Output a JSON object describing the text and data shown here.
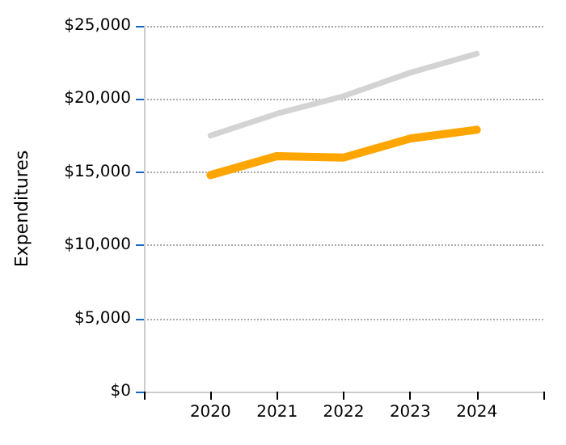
{
  "chart_data": {
    "type": "line",
    "ylabel": "Expenditures",
    "x": [
      2020,
      2021,
      2022,
      2023,
      2024
    ],
    "series": [
      {
        "color": "#d3d3d3",
        "values": [
          17500,
          19000,
          20200,
          21800,
          23100
        ]
      },
      {
        "color": "#ffa500",
        "values": [
          14800,
          16100,
          16000,
          17300,
          17900
        ]
      }
    ],
    "xlim": [
      2019,
      2025
    ],
    "xticks": [
      {
        "value": 2019,
        "label": null
      },
      2020,
      2021,
      2022,
      2023,
      2024,
      {
        "value": 2025,
        "label": null
      }
    ],
    "ylim": [
      0,
      25000
    ],
    "yticks": [
      {
        "value": 0,
        "label": "$0"
      },
      {
        "value": 5000,
        "label": "$5,000"
      },
      {
        "value": 10000,
        "label": "$10,000"
      },
      {
        "value": 15000,
        "label": "$15,000"
      },
      {
        "value": 20000,
        "label": "$20,000"
      },
      {
        "value": 25000,
        "label": "$25,000"
      }
    ],
    "grid": "y",
    "marker": "none",
    "line_style": "solid"
  }
}
